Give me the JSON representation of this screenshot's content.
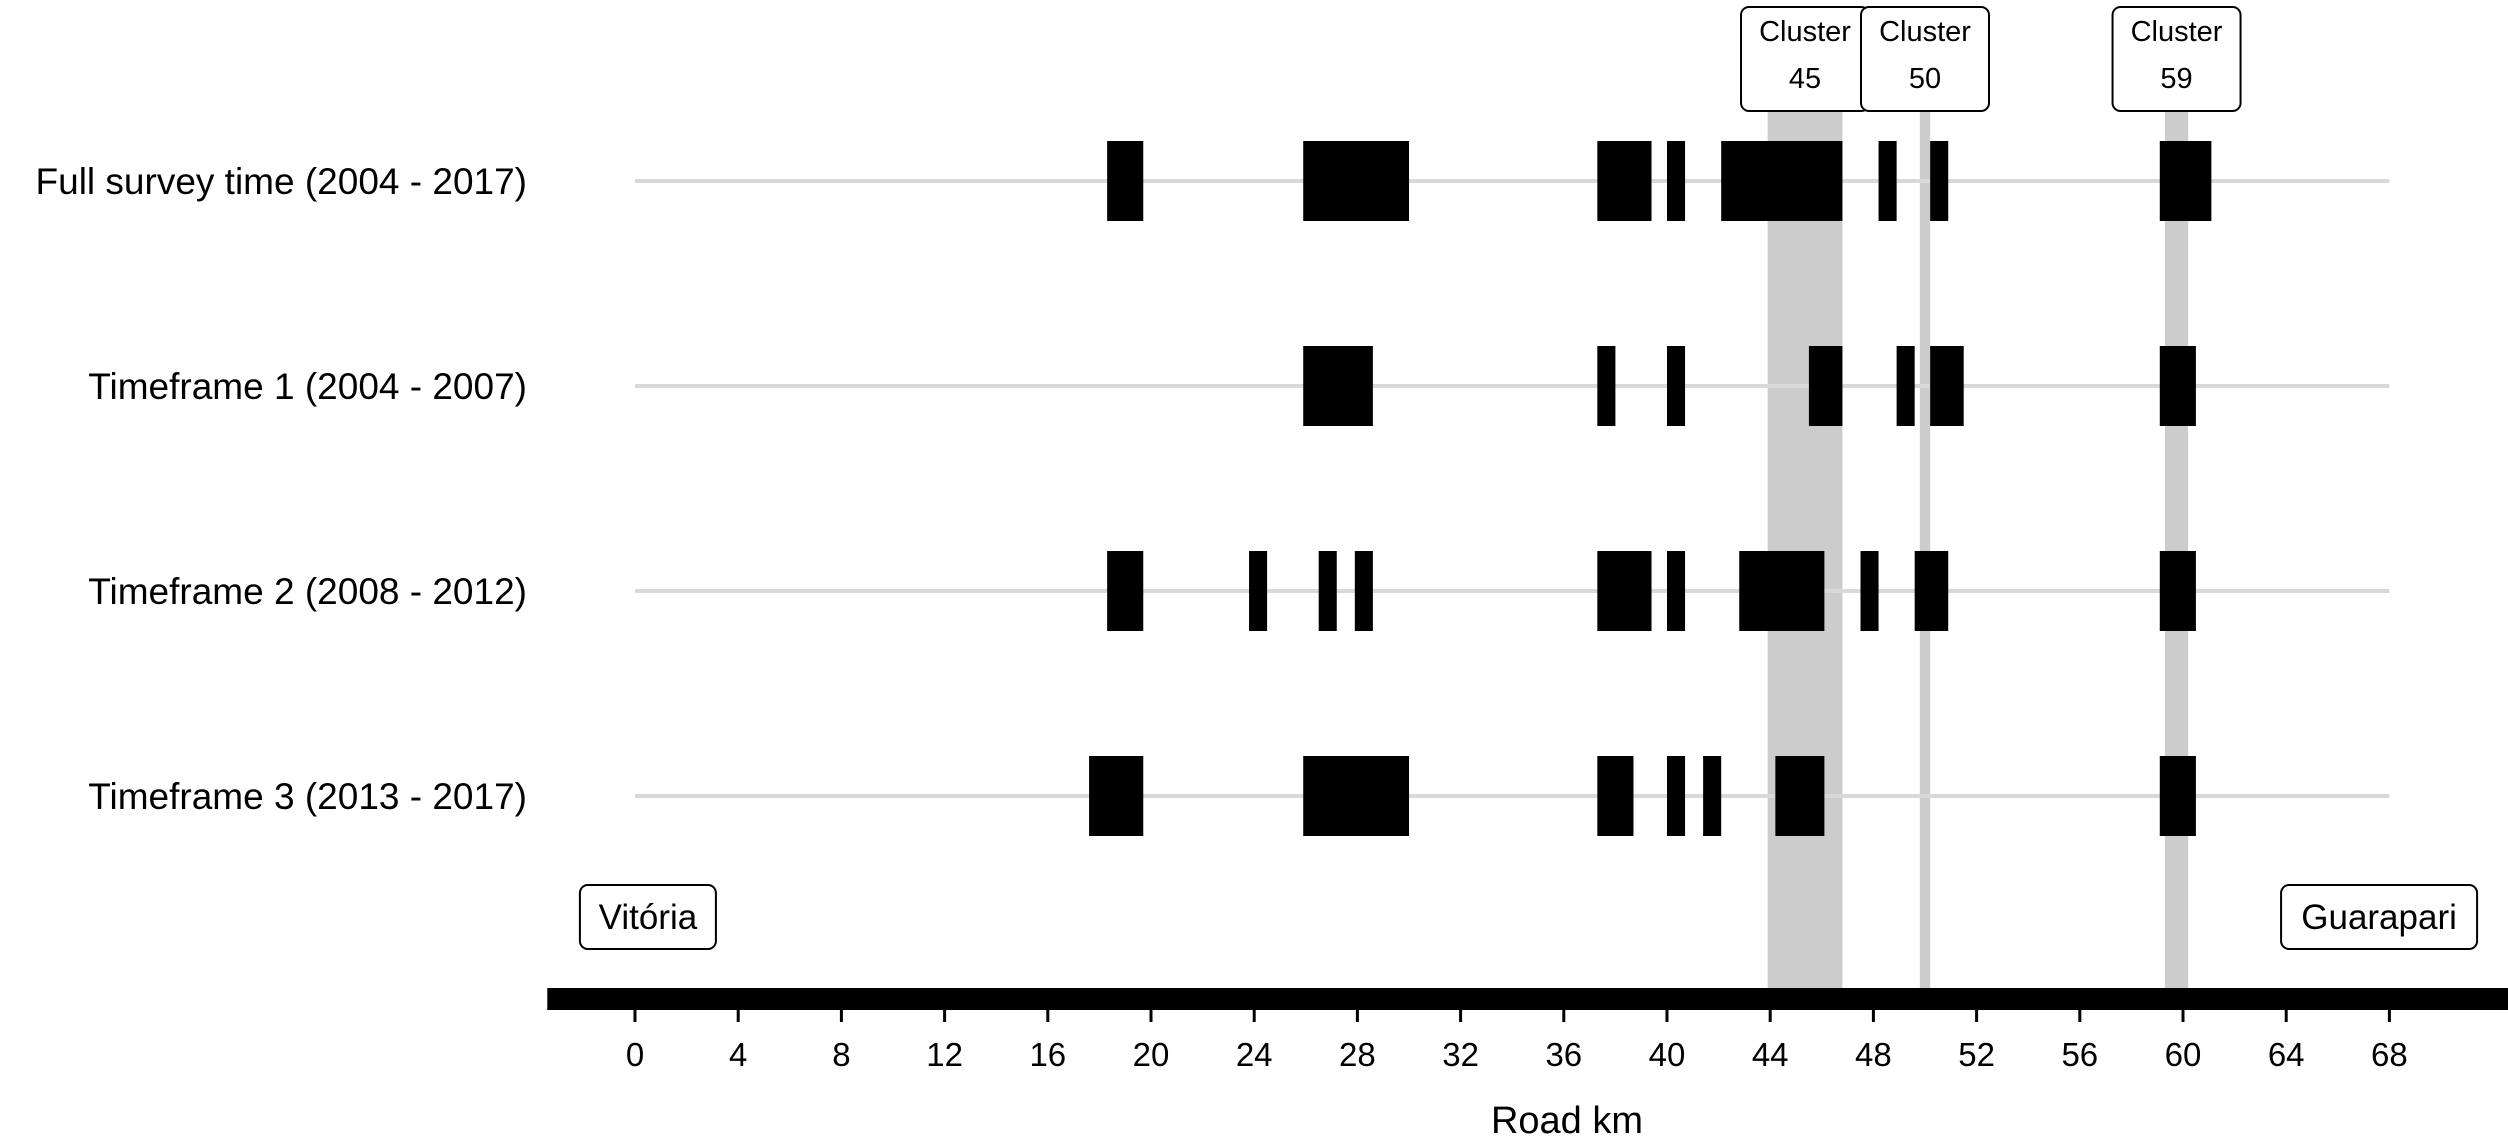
{
  "chart_data": {
    "type": "bar",
    "xlabel": "Road km",
    "xlim": [
      -3.4,
      72.6
    ],
    "x_ticks": [
      0,
      4,
      8,
      12,
      16,
      20,
      24,
      28,
      32,
      36,
      40,
      44,
      48,
      52,
      56,
      60,
      64,
      68
    ],
    "colors": {
      "segment": "#000000",
      "cluster_band": "#cccccc",
      "row_line": "#d9d9d9",
      "road": "#000000"
    },
    "rows": [
      {
        "label": "Full survey time (2004 - 2017)",
        "segments": [
          [
            18.3,
            19.7
          ],
          [
            25.9,
            30.0
          ],
          [
            37.3,
            39.4
          ],
          [
            40.0,
            40.7
          ],
          [
            42.1,
            46.8
          ],
          [
            48.2,
            48.9
          ],
          [
            50.2,
            50.9
          ],
          [
            59.1,
            61.1
          ]
        ]
      },
      {
        "label": "Timeframe 1 (2004 - 2007)",
        "segments": [
          [
            25.9,
            28.6
          ],
          [
            37.3,
            38.0
          ],
          [
            40.0,
            40.7
          ],
          [
            45.5,
            46.8
          ],
          [
            48.9,
            49.6
          ],
          [
            50.2,
            51.5
          ],
          [
            59.1,
            60.5
          ]
        ]
      },
      {
        "label": "Timeframe 2 (2008 - 2012)",
        "segments": [
          [
            18.3,
            19.7
          ],
          [
            23.8,
            24.5
          ],
          [
            26.5,
            27.2
          ],
          [
            27.9,
            28.6
          ],
          [
            37.3,
            39.4
          ],
          [
            40.0,
            40.7
          ],
          [
            42.8,
            46.1
          ],
          [
            47.5,
            48.2
          ],
          [
            49.6,
            50.9
          ],
          [
            59.1,
            60.5
          ]
        ]
      },
      {
        "label": "Timeframe 3 (2013 - 2017)",
        "segments": [
          [
            17.6,
            19.7
          ],
          [
            25.9,
            30.0
          ],
          [
            37.3,
            38.7
          ],
          [
            40.0,
            40.7
          ],
          [
            41.4,
            42.1
          ],
          [
            44.2,
            46.1
          ],
          [
            59.1,
            60.5
          ]
        ]
      }
    ],
    "clusters": [
      {
        "label_line1": "Cluster",
        "label_line2": "45",
        "start": 43.9,
        "end": 46.8
      },
      {
        "label_line1": "Cluster",
        "label_line2": "50",
        "start": 49.8,
        "end": 50.2
      },
      {
        "label_line1": "Cluster",
        "label_line2": "59",
        "start": 59.3,
        "end": 60.2
      }
    ],
    "endpoints": [
      {
        "label": "Vitória",
        "km": 0.5
      },
      {
        "label": "Guarapari",
        "km": 67.6
      }
    ],
    "grid": false,
    "legend": "none"
  }
}
